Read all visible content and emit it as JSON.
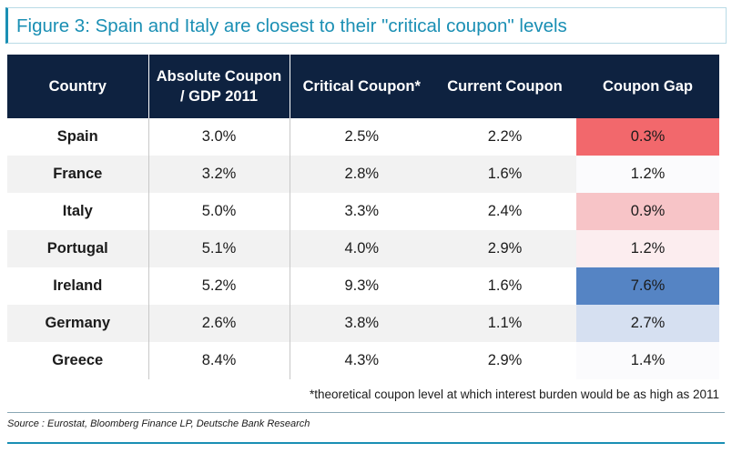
{
  "title": "Figure 3: Spain and Italy are closest to their \"critical coupon\" levels",
  "colors": {
    "accent": "#1a8fb4",
    "header_bg": "#0e2240",
    "gap_red_strong": "#f2686c",
    "gap_red_light": "#f7c4c7",
    "gap_pink_faint": "#fcedef",
    "gap_white": "#fbfbfd",
    "gap_blue_strong": "#5584c4",
    "gap_blue_light": "#d6e0f1"
  },
  "chart_data": {
    "type": "table",
    "title": "Figure 3: Spain and Italy are closest to their \"critical coupon\" levels",
    "columns": [
      "Country",
      "Absolute Coupon / GDP 2011",
      "Critical Coupon*",
      "Current Coupon",
      "Coupon Gap"
    ],
    "rows": [
      {
        "country": "Spain",
        "absolute": "3.0%",
        "critical": "2.5%",
        "current": "2.2%",
        "gap": "0.3%",
        "gap_color": "#f2686c"
      },
      {
        "country": "France",
        "absolute": "3.2%",
        "critical": "2.8%",
        "current": "1.6%",
        "gap": "1.2%",
        "gap_color": "#fbfbfd"
      },
      {
        "country": "Italy",
        "absolute": "5.0%",
        "critical": "3.3%",
        "current": "2.4%",
        "gap": "0.9%",
        "gap_color": "#f7c4c7"
      },
      {
        "country": "Portugal",
        "absolute": "5.1%",
        "critical": "4.0%",
        "current": "2.9%",
        "gap": "1.2%",
        "gap_color": "#fcedef"
      },
      {
        "country": "Ireland",
        "absolute": "5.2%",
        "critical": "9.3%",
        "current": "1.6%",
        "gap": "7.6%",
        "gap_color": "#5584c4"
      },
      {
        "country": "Germany",
        "absolute": "2.6%",
        "critical": "3.8%",
        "current": "1.1%",
        "gap": "2.7%",
        "gap_color": "#d6e0f1"
      },
      {
        "country": "Greece",
        "absolute": "8.4%",
        "critical": "4.3%",
        "current": "2.9%",
        "gap": "1.4%",
        "gap_color": "#fbfbfd"
      }
    ],
    "footnote": "*theoretical coupon level at which interest burden would be as high as 2011",
    "source": "Source : Eurostat, Bloomberg Finance LP, Deutsche Bank Research"
  }
}
